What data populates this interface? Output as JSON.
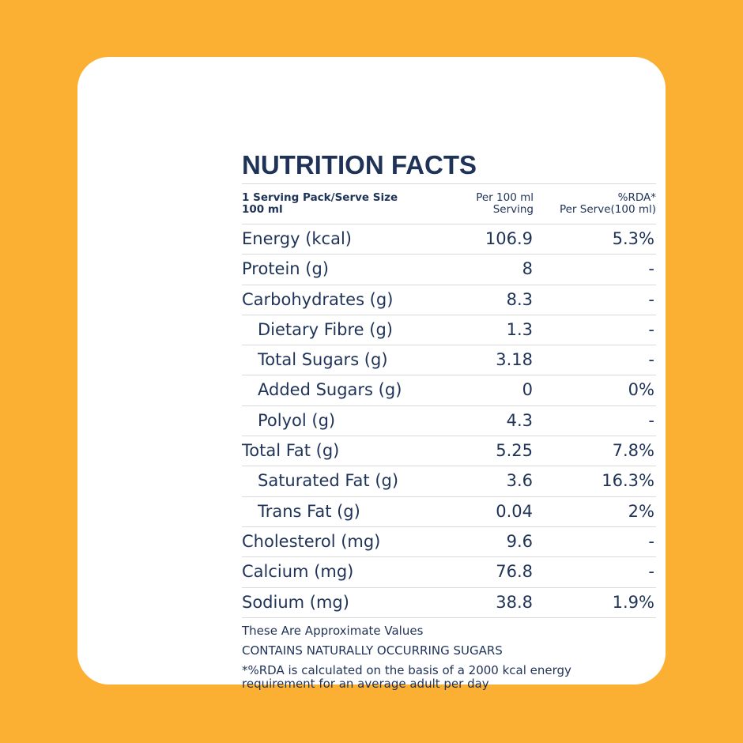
{
  "colors": {
    "background": "#FBB033",
    "card": "#FFFFFF",
    "text": "#1F3358"
  },
  "title": "NUTRITION FACTS",
  "header": {
    "col1_line1": "1 Serving Pack/Serve Size",
    "col1_line2": "100 ml",
    "col2_line1": "Per 100 ml",
    "col2_line2": "Serving",
    "col3_line1": "%RDA*",
    "col3_line2": "Per Serve(100 ml)"
  },
  "rows": [
    {
      "name": "Energy (kcal)",
      "value": "106.9",
      "rda": "5.3%",
      "sub": false
    },
    {
      "name": "Protein (g)",
      "value": "8",
      "rda": "-",
      "sub": false
    },
    {
      "name": "Carbohydrates (g)",
      "value": "8.3",
      "rda": "-",
      "sub": false
    },
    {
      "name": "Dietary Fibre (g)",
      "value": "1.3",
      "rda": "-",
      "sub": true
    },
    {
      "name": "Total Sugars (g)",
      "value": "3.18",
      "rda": "-",
      "sub": true
    },
    {
      "name": "Added Sugars (g)",
      "value": "0",
      "rda": "0%",
      "sub": true
    },
    {
      "name": "Polyol (g)",
      "value": "4.3",
      "rda": "-",
      "sub": true
    },
    {
      "name": "Total Fat (g)",
      "value": "5.25",
      "rda": "7.8%",
      "sub": false
    },
    {
      "name": "Saturated Fat (g)",
      "value": "3.6",
      "rda": "16.3%",
      "sub": true
    },
    {
      "name": "Trans Fat (g)",
      "value": "0.04",
      "rda": "2%",
      "sub": true
    },
    {
      "name": "Cholesterol (mg)",
      "value": "9.6",
      "rda": "-",
      "sub": false
    },
    {
      "name": "Calcium (mg)",
      "value": "76.8",
      "rda": "-",
      "sub": false
    },
    {
      "name": "Sodium (mg)",
      "value": "38.8",
      "rda": "1.9%",
      "sub": false
    }
  ],
  "notes": {
    "approx": "These Are Approximate Values",
    "sugars": "CONTAINS NATURALLY OCCURRING SUGARS",
    "footnote_line1": "*%RDA is calculated on the basis of a 2000 kcal energy",
    "footnote_line2": "requirement for an average adult per day"
  }
}
